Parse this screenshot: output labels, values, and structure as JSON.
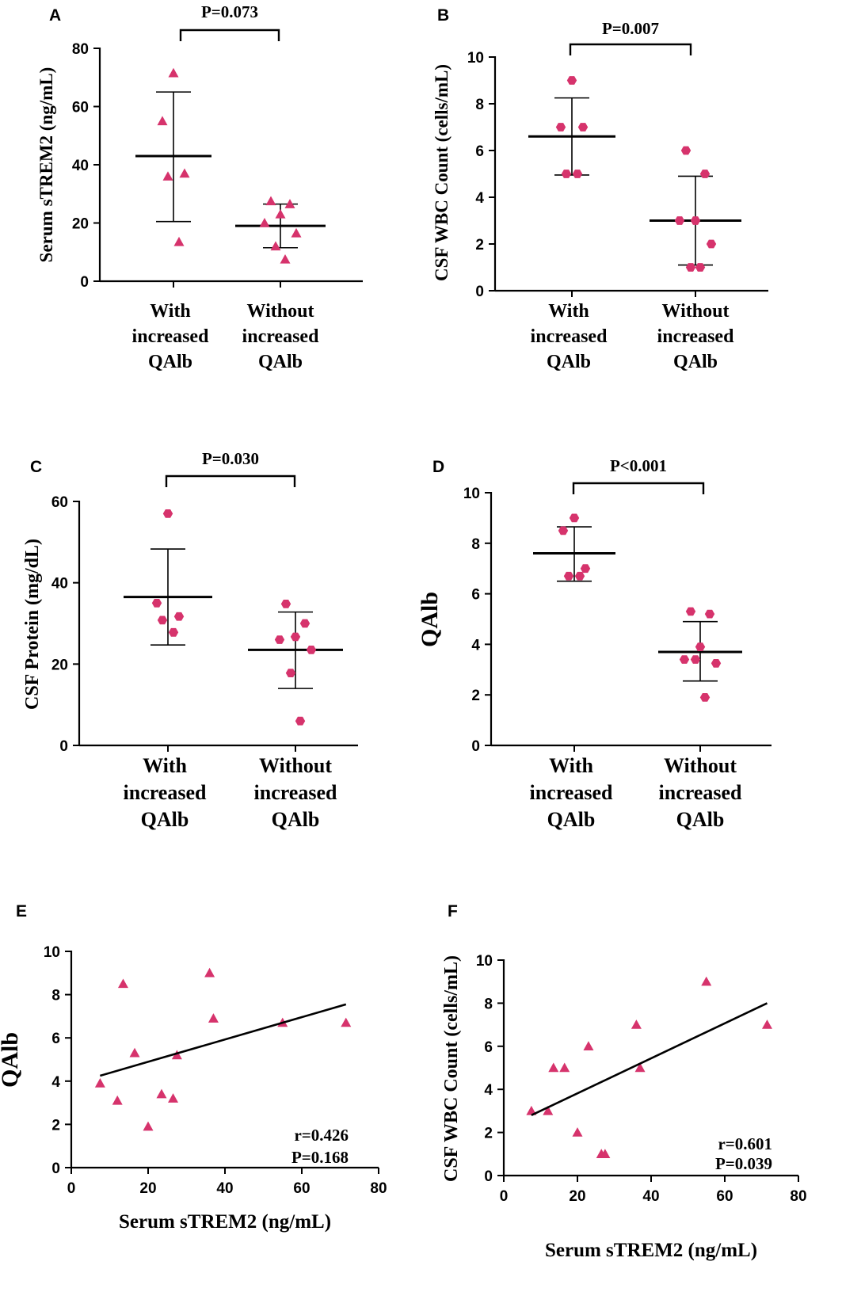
{
  "marker_color": "#d6336c",
  "line_color": "#000000",
  "chart_data": [
    {
      "panel": "A",
      "type": "scatter",
      "marker": "triangle",
      "ylabel": "Serum sTREM2 (ng/mL)",
      "ylim": [
        0,
        80
      ],
      "yticks": [
        0,
        20,
        40,
        60,
        80
      ],
      "categories": [
        [
          "With",
          "increased",
          "QAlb"
        ],
        [
          "Without",
          "increased",
          "QAlb"
        ]
      ],
      "groups": [
        {
          "name": "With increased QAlb",
          "values": [
            71.5,
            55,
            37,
            36,
            13.5
          ],
          "mean": 43,
          "sd": [
            20.5,
            65
          ]
        },
        {
          "name": "Without increased QAlb",
          "values": [
            27.5,
            26.5,
            23,
            20,
            16.5,
            12,
            7.5
          ],
          "mean": 19,
          "sd": [
            11.5,
            26.5
          ]
        }
      ],
      "pvalue": "P=0.073"
    },
    {
      "panel": "B",
      "type": "scatter",
      "marker": "hexagon",
      "ylabel": "CSF WBC Count (cells/mL)",
      "ylim": [
        0,
        10
      ],
      "yticks": [
        0,
        2,
        4,
        6,
        8,
        10
      ],
      "categories": [
        [
          "With",
          "increased",
          "QAlb"
        ],
        [
          "Without",
          "increased",
          "QAlb"
        ]
      ],
      "groups": [
        {
          "name": "With increased QAlb",
          "values": [
            9,
            7,
            7,
            5,
            5
          ],
          "mean": 6.6,
          "sd": [
            4.95,
            8.25
          ]
        },
        {
          "name": "Without increased QAlb",
          "values": [
            6,
            5,
            3,
            3,
            2,
            1,
            1
          ],
          "mean": 3,
          "sd": [
            1.1,
            4.9
          ]
        }
      ],
      "pvalue": "P=0.007"
    },
    {
      "panel": "C",
      "type": "scatter",
      "marker": "hexagon",
      "ylabel": "CSF Protein (mg/dL)",
      "ylim": [
        0,
        60
      ],
      "yticks": [
        0,
        20,
        40,
        60
      ],
      "categories": [
        [
          "With",
          "increased",
          "QAlb"
        ],
        [
          "Without",
          "increased",
          "QAlb"
        ]
      ],
      "groups": [
        {
          "name": "With increased QAlb",
          "values": [
            57,
            35,
            31.7,
            30.8,
            27.8
          ],
          "mean": 36.5,
          "sd": [
            24.7,
            48.3
          ]
        },
        {
          "name": "Without increased QAlb",
          "values": [
            34.8,
            30,
            26.7,
            26,
            23.5,
            17.8,
            6
          ],
          "mean": 23.5,
          "sd": [
            14,
            32.8
          ]
        }
      ],
      "pvalue": "P=0.030"
    },
    {
      "panel": "D",
      "type": "scatter",
      "marker": "hexagon",
      "ylabel": "QAlb",
      "ylim": [
        0,
        10
      ],
      "yticks": [
        0,
        2,
        4,
        6,
        8,
        10
      ],
      "categories": [
        [
          "With",
          "increased",
          "QAlb"
        ],
        [
          "Without",
          "increased",
          "QAlb"
        ]
      ],
      "groups": [
        {
          "name": "With increased QAlb",
          "values": [
            9,
            8.5,
            7,
            6.7,
            6.7
          ],
          "mean": 7.6,
          "sd": [
            6.5,
            8.65
          ]
        },
        {
          "name": "Without increased QAlb",
          "values": [
            5.3,
            5.2,
            3.9,
            3.4,
            3.25,
            3.4,
            1.9
          ],
          "mean": 3.7,
          "sd": [
            2.55,
            4.9
          ]
        }
      ],
      "pvalue": "P<0.001"
    },
    {
      "panel": "E",
      "type": "scatter",
      "marker": "triangle",
      "xlabel": "Serum sTREM2 (ng/mL)",
      "ylabel": "QAlb",
      "xlim": [
        0,
        80
      ],
      "xticks": [
        0,
        20,
        40,
        60,
        80
      ],
      "ylim": [
        0,
        10
      ],
      "yticks": [
        0,
        2,
        4,
        6,
        8,
        10
      ],
      "x": [
        7.5,
        12,
        13.5,
        16.5,
        20,
        23.5,
        26.5,
        27.5,
        36,
        37,
        55,
        71.5
      ],
      "y": [
        3.9,
        3.1,
        8.5,
        5.3,
        1.9,
        3.4,
        3.2,
        5.2,
        9.0,
        6.9,
        6.7,
        6.7
      ],
      "fit": {
        "x": [
          7.5,
          71.5
        ],
        "y": [
          4.25,
          7.55
        ]
      },
      "annotation": [
        "r=0.426",
        "P=0.168"
      ]
    },
    {
      "panel": "F",
      "type": "scatter",
      "marker": "triangle",
      "xlabel": "Serum sTREM2 (ng/mL)",
      "ylabel": "CSF WBC Count (cells/mL)",
      "xlim": [
        0,
        80
      ],
      "xticks": [
        0,
        20,
        40,
        60,
        80
      ],
      "ylim": [
        0,
        10
      ],
      "yticks": [
        0,
        2,
        4,
        6,
        8,
        10
      ],
      "x": [
        7.5,
        12,
        13.5,
        16.5,
        20,
        23,
        26.5,
        27.5,
        36,
        37,
        55,
        71.5
      ],
      "y": [
        3,
        3,
        5,
        5,
        2,
        6,
        1,
        1,
        7,
        5,
        9,
        7
      ],
      "fit": {
        "x": [
          7.5,
          71.5
        ],
        "y": [
          2.8,
          8.0
        ]
      },
      "annotation": [
        "r=0.601",
        "P=0.039"
      ]
    }
  ]
}
